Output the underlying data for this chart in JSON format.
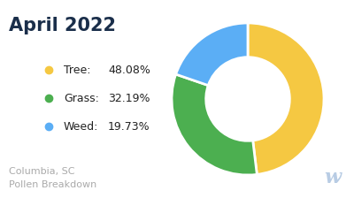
{
  "title": "April 2022",
  "title_color": "#1a2e4a",
  "subtitle": "Columbia, SC\nPollen Breakdown",
  "subtitle_color": "#aaaaaa",
  "categories": [
    "Tree",
    "Grass",
    "Weed"
  ],
  "values": [
    48.08,
    32.19,
    19.73
  ],
  "colors": [
    "#f5c842",
    "#4caf50",
    "#5baef5"
  ],
  "legend_names": [
    "Tree:",
    "Grass:",
    "Weed:"
  ],
  "legend_pcts": [
    "48.08%",
    "32.19%",
    "19.73%"
  ],
  "background_color": "#ffffff",
  "donut_width": 0.45,
  "start_angle": 90
}
